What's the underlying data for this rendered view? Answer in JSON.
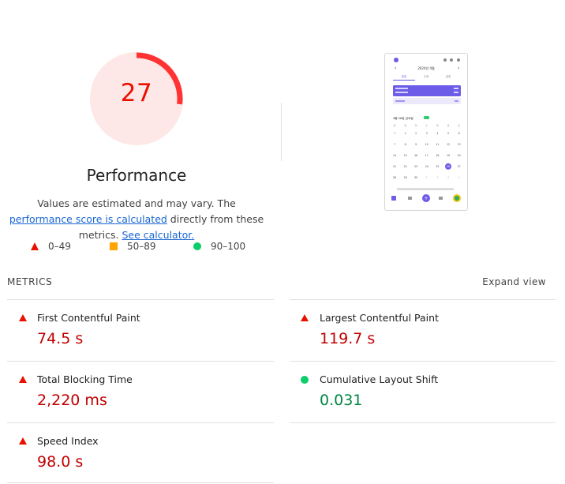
{
  "gauge": {
    "score": "27",
    "title": "Performance",
    "fraction": 0.27,
    "ring_color": "#ff3333",
    "fill_color": "#fde8e7"
  },
  "description": {
    "text1": "Values are estimated and may vary. The ",
    "link1": "performance score is calculated",
    "text2": " directly from these metrics. ",
    "link2": "See calculator."
  },
  "legend": [
    {
      "range": "0–49",
      "shape": "triangle",
      "color": "#eb0f00"
    },
    {
      "range": "50–89",
      "shape": "square",
      "color": "#ffa400"
    },
    {
      "range": "90–100",
      "shape": "circle",
      "color": "#0cce6b"
    }
  ],
  "metrics": {
    "heading": "METRICS",
    "expand_label": "Expand view",
    "items": [
      {
        "name": "First Contentful Paint",
        "value": "74.5 s",
        "status": "fail"
      },
      {
        "name": "Largest Contentful Paint",
        "value": "119.7 s",
        "status": "fail"
      },
      {
        "name": "Total Blocking Time",
        "value": "2,220 ms",
        "status": "fail"
      },
      {
        "name": "Cumulative Layout Shift",
        "value": "0.031",
        "status": "pass"
      },
      {
        "name": "Speed Index",
        "value": "98.0 s",
        "status": "fail"
      }
    ]
  },
  "screenshot": {
    "month": "2024년 4월",
    "tabs": [
      "일정",
      "수정",
      "설정"
    ],
    "date_header": "4월 26일 금요일",
    "weekdays": [
      "일",
      "월",
      "화",
      "수",
      "목",
      "금",
      "토"
    ],
    "calendar": [
      [
        "31",
        "1",
        "2",
        "3",
        "4",
        "5",
        "6"
      ],
      [
        "7",
        "8",
        "9",
        "10",
        "11",
        "12",
        "13"
      ],
      [
        "14",
        "15",
        "16",
        "17",
        "18",
        "19",
        "20"
      ],
      [
        "21",
        "22",
        "23",
        "24",
        "25",
        "26",
        "27"
      ],
      [
        "28",
        "29",
        "30",
        "1",
        "2",
        "3",
        "4"
      ]
    ],
    "accent": "#6c5ce7"
  }
}
